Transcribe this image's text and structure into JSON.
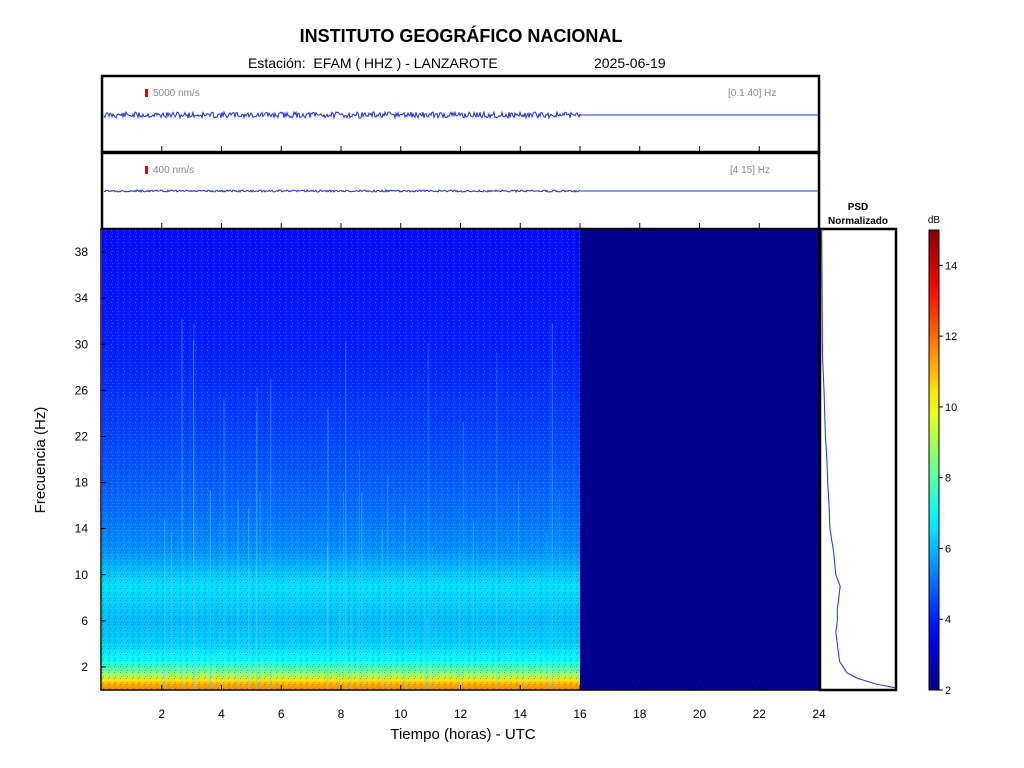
{
  "header": {
    "institution": "INSTITUTO GEOGRÁFICO NACIONAL",
    "station": "Estación:  EFAM ( HHZ ) - LANZAROTE",
    "date": "2025-06-19"
  },
  "colors": {
    "trace": "#1f2fd6",
    "scale_marker": "#e00000",
    "empty_spectrogram": "#00008f"
  },
  "chart_data": [
    {
      "type": "line",
      "name": "seismogram-broadband",
      "scale_label": "5000 nm/s",
      "filter_label": "[0.1 40] Hz",
      "x_range_hours": [
        0,
        24
      ],
      "data_end_hours": 16
    },
    {
      "type": "line",
      "name": "seismogram-filtered",
      "scale_label": "400 nm/s",
      "filter_label": "[4 15] Hz",
      "x_range_hours": [
        0,
        24
      ],
      "data_end_hours": 16
    },
    {
      "type": "heatmap",
      "xlabel": "Tiempo (horas) - UTC",
      "ylabel": "Frecuencia  (Hz)",
      "xlim": [
        0,
        24
      ],
      "ylim": [
        0,
        40
      ],
      "xticks": [
        2,
        4,
        6,
        8,
        10,
        12,
        14,
        16,
        18,
        20,
        22,
        24
      ],
      "yticks": [
        2,
        6,
        10,
        14,
        18,
        22,
        26,
        30,
        34,
        38
      ],
      "data_end_hours": 16,
      "energy_profile_db": [
        {
          "freq_hz": 0.3,
          "db": 11.5
        },
        {
          "freq_hz": 0.8,
          "db": 10.5
        },
        {
          "freq_hz": 1.5,
          "db": 8.5
        },
        {
          "freq_hz": 2.5,
          "db": 7.0
        },
        {
          "freq_hz": 4,
          "db": 6.3
        },
        {
          "freq_hz": 6,
          "db": 6.0
        },
        {
          "freq_hz": 9,
          "db": 6.5
        },
        {
          "freq_hz": 12,
          "db": 5.5
        },
        {
          "freq_hz": 16,
          "db": 5.0
        },
        {
          "freq_hz": 22,
          "db": 4.5
        },
        {
          "freq_hz": 30,
          "db": 4.0
        },
        {
          "freq_hz": 40,
          "db": 3.8
        }
      ]
    },
    {
      "type": "line",
      "name": "psd",
      "title": "PSD Normalizado",
      "points": [
        {
          "freq_hz": 0.2,
          "value": 1.0
        },
        {
          "freq_hz": 0.5,
          "value": 0.75
        },
        {
          "freq_hz": 1.0,
          "value": 0.5
        },
        {
          "freq_hz": 1.5,
          "value": 0.35
        },
        {
          "freq_hz": 2.5,
          "value": 0.25
        },
        {
          "freq_hz": 4,
          "value": 0.22
        },
        {
          "freq_hz": 5,
          "value": 0.2
        },
        {
          "freq_hz": 6,
          "value": 0.22
        },
        {
          "freq_hz": 7,
          "value": 0.22
        },
        {
          "freq_hz": 8,
          "value": 0.24
        },
        {
          "freq_hz": 9,
          "value": 0.26
        },
        {
          "freq_hz": 10,
          "value": 0.2
        },
        {
          "freq_hz": 12,
          "value": 0.17
        },
        {
          "freq_hz": 14,
          "value": 0.12
        },
        {
          "freq_hz": 16,
          "value": 0.11
        },
        {
          "freq_hz": 18,
          "value": 0.09
        },
        {
          "freq_hz": 20,
          "value": 0.08
        },
        {
          "freq_hz": 22,
          "value": 0.06
        },
        {
          "freq_hz": 26,
          "value": 0.04
        },
        {
          "freq_hz": 29,
          "value": 0.02
        },
        {
          "freq_hz": 34,
          "value": 0.015
        },
        {
          "freq_hz": 40,
          "value": 0.01
        }
      ]
    },
    {
      "type": "heatmap",
      "name": "colorbar",
      "title": "dB",
      "range": [
        2,
        15
      ],
      "ticks": [
        2,
        4,
        6,
        8,
        10,
        12,
        14
      ]
    }
  ]
}
